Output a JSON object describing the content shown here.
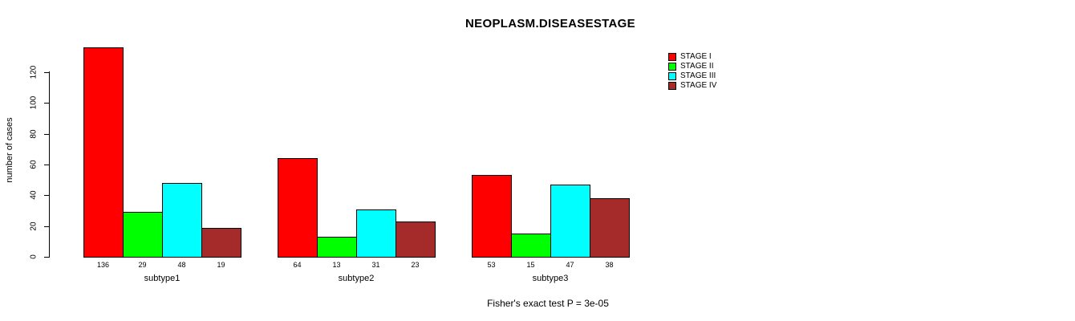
{
  "chart_data": {
    "type": "bar",
    "title": "NEOPLASM.DISEASESTAGE",
    "ylabel": "number of cases",
    "categories": [
      "subtype1",
      "subtype2",
      "subtype3"
    ],
    "series": [
      {
        "name": "STAGE I",
        "color": "#FF0000",
        "values": [
          136,
          64,
          53
        ]
      },
      {
        "name": "STAGE II",
        "color": "#00FF00",
        "values": [
          29,
          13,
          15
        ]
      },
      {
        "name": "STAGE III",
        "color": "#00FFFF",
        "values": [
          48,
          31,
          47
        ]
      },
      {
        "name": "STAGE IV",
        "color": "#A52A2A",
        "values": [
          19,
          23,
          38
        ]
      }
    ],
    "yticks": [
      0,
      20,
      40,
      60,
      80,
      100,
      120
    ],
    "ylim": [
      0,
      136
    ],
    "bar_value_labels": true,
    "grid": false,
    "legend_position": "top-right",
    "annotation": "Fisher's exact test P = 3e-05"
  }
}
